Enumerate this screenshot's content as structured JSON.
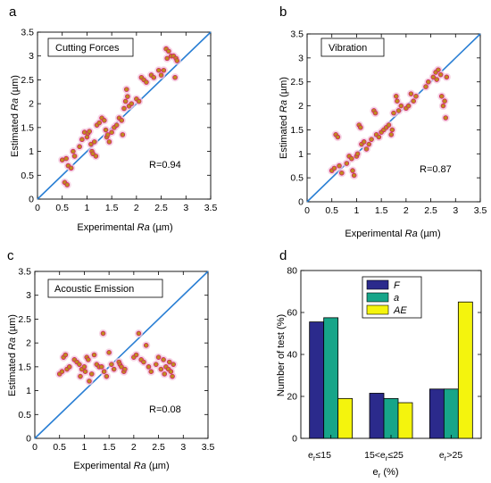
{
  "chart_data": [
    {
      "type": "scatter",
      "panel_letter": "a",
      "box_label": "Cutting Forces",
      "r_label": "R=0.94",
      "xlabel_prefix": "Experimental ",
      "xlabel_var": "Ra",
      "xlabel_unit": " (µm)",
      "ylabel_prefix": "Estimated ",
      "ylabel_var": "Ra",
      "ylabel_unit": "  (µm)",
      "xlim": [
        0,
        3.5
      ],
      "ylim": [
        0,
        3.5
      ],
      "xticks": [
        "0",
        "0.5",
        "1",
        "1.5",
        "2",
        "2.5",
        "3",
        "3.5"
      ],
      "yticks": [
        "0",
        "0.5",
        "1",
        "1.5",
        "2",
        "2.5",
        "3",
        "3.5"
      ],
      "reference_line": [
        [
          0,
          0
        ],
        [
          3.5,
          3.5
        ]
      ],
      "line_color": "#2a7fd4",
      "point_color": "#c08a1e",
      "point_edge": "#d0206a",
      "points": [
        [
          0.5,
          0.82
        ],
        [
          0.55,
          0.35
        ],
        [
          0.6,
          0.3
        ],
        [
          0.58,
          0.85
        ],
        [
          0.62,
          0.7
        ],
        [
          0.68,
          0.65
        ],
        [
          0.75,
          0.9
        ],
        [
          0.72,
          1.0
        ],
        [
          0.85,
          1.1
        ],
        [
          0.9,
          1.25
        ],
        [
          0.95,
          1.4
        ],
        [
          1.0,
          1.3
        ],
        [
          1.02,
          1.38
        ],
        [
          1.05,
          1.42
        ],
        [
          1.08,
          1.15
        ],
        [
          1.1,
          1.0
        ],
        [
          1.12,
          0.95
        ],
        [
          1.15,
          1.2
        ],
        [
          1.18,
          0.9
        ],
        [
          1.2,
          1.55
        ],
        [
          1.25,
          1.6
        ],
        [
          1.3,
          1.7
        ],
        [
          1.35,
          1.65
        ],
        [
          1.38,
          1.45
        ],
        [
          1.4,
          1.3
        ],
        [
          1.42,
          1.35
        ],
        [
          1.45,
          1.2
        ],
        [
          1.5,
          1.4
        ],
        [
          1.55,
          1.5
        ],
        [
          1.6,
          1.55
        ],
        [
          1.65,
          1.7
        ],
        [
          1.7,
          1.65
        ],
        [
          1.72,
          1.35
        ],
        [
          1.75,
          1.9
        ],
        [
          1.78,
          2.05
        ],
        [
          1.8,
          2.3
        ],
        [
          1.82,
          2.15
        ],
        [
          1.85,
          1.95
        ],
        [
          1.9,
          2.0
        ],
        [
          2.0,
          2.1
        ],
        [
          2.05,
          2.05
        ],
        [
          2.1,
          2.55
        ],
        [
          2.15,
          2.5
        ],
        [
          2.2,
          2.45
        ],
        [
          2.3,
          2.6
        ],
        [
          2.35,
          2.55
        ],
        [
          2.45,
          2.7
        ],
        [
          2.5,
          2.6
        ],
        [
          2.55,
          2.7
        ],
        [
          2.6,
          3.15
        ],
        [
          2.62,
          2.95
        ],
        [
          2.65,
          3.1
        ],
        [
          2.7,
          3.0
        ],
        [
          2.75,
          3.0
        ],
        [
          2.78,
          2.55
        ],
        [
          2.8,
          2.95
        ],
        [
          2.82,
          2.9
        ]
      ]
    },
    {
      "type": "scatter",
      "panel_letter": "b",
      "box_label": "Vibration",
      "r_label": "R=0.87",
      "xlabel_prefix": "Experimental ",
      "xlabel_var": "Ra",
      "xlabel_unit": " (µm)",
      "ylabel_prefix": "Estimated ",
      "ylabel_var": "Ra",
      "ylabel_unit": "  (µm)",
      "xlim": [
        0,
        3.5
      ],
      "ylim": [
        0,
        3.5
      ],
      "xticks": [
        "0",
        "0.5",
        "1",
        "1.5",
        "2",
        "2.5",
        "3",
        "3.5"
      ],
      "yticks": [
        "0",
        "0.5",
        "1",
        "1.5",
        "2",
        "2.5",
        "3",
        "3.5"
      ],
      "reference_line": [
        [
          0,
          0
        ],
        [
          3.5,
          3.5
        ]
      ],
      "line_color": "#2a7fd4",
      "point_color": "#c08a1e",
      "point_edge": "#d0206a",
      "points": [
        [
          0.5,
          0.65
        ],
        [
          0.55,
          0.7
        ],
        [
          0.58,
          1.4
        ],
        [
          0.62,
          1.35
        ],
        [
          0.65,
          0.75
        ],
        [
          0.7,
          0.6
        ],
        [
          0.8,
          0.8
        ],
        [
          0.85,
          0.95
        ],
        [
          0.9,
          0.9
        ],
        [
          0.92,
          0.65
        ],
        [
          0.95,
          0.55
        ],
        [
          1.0,
          0.95
        ],
        [
          1.02,
          1.0
        ],
        [
          1.05,
          1.6
        ],
        [
          1.08,
          1.55
        ],
        [
          1.1,
          1.2
        ],
        [
          1.15,
          1.25
        ],
        [
          1.2,
          1.1
        ],
        [
          1.25,
          1.2
        ],
        [
          1.3,
          1.3
        ],
        [
          1.35,
          1.9
        ],
        [
          1.38,
          1.85
        ],
        [
          1.4,
          1.4
        ],
        [
          1.45,
          1.35
        ],
        [
          1.5,
          1.45
        ],
        [
          1.55,
          1.5
        ],
        [
          1.6,
          1.55
        ],
        [
          1.65,
          1.6
        ],
        [
          1.7,
          1.4
        ],
        [
          1.72,
          1.5
        ],
        [
          1.75,
          1.85
        ],
        [
          1.8,
          2.2
        ],
        [
          1.82,
          2.1
        ],
        [
          1.85,
          1.9
        ],
        [
          1.9,
          2.0
        ],
        [
          2.0,
          1.95
        ],
        [
          2.05,
          2.0
        ],
        [
          2.1,
          2.25
        ],
        [
          2.15,
          2.1
        ],
        [
          2.2,
          2.2
        ],
        [
          2.4,
          2.4
        ],
        [
          2.45,
          2.5
        ],
        [
          2.55,
          2.6
        ],
        [
          2.6,
          2.7
        ],
        [
          2.62,
          2.55
        ],
        [
          2.65,
          2.75
        ],
        [
          2.7,
          2.65
        ],
        [
          2.72,
          2.2
        ],
        [
          2.75,
          2.0
        ],
        [
          2.78,
          2.1
        ],
        [
          2.8,
          1.75
        ],
        [
          2.82,
          2.6
        ]
      ]
    },
    {
      "type": "scatter",
      "panel_letter": "c",
      "box_label": "Acoustic Emission",
      "r_label": "R=0.08",
      "xlabel_prefix": "Experimental ",
      "xlabel_var": "Ra",
      "xlabel_unit": " (µm)",
      "ylabel_prefix": "Estimated ",
      "ylabel_var": "Ra",
      "ylabel_unit": "  (µm)",
      "xlim": [
        0,
        3.5
      ],
      "ylim": [
        0,
        3.5
      ],
      "xticks": [
        "0",
        "0.5",
        "1",
        "1.5",
        "2",
        "2.5",
        "3",
        "3.5"
      ],
      "yticks": [
        "0",
        "0.5",
        "1",
        "1.5",
        "2",
        "2.5",
        "3",
        "3.5"
      ],
      "reference_line": [
        [
          0,
          0
        ],
        [
          3.5,
          3.5
        ]
      ],
      "line_color": "#2a7fd4",
      "point_color": "#c08a1e",
      "point_edge": "#d0206a",
      "points": [
        [
          0.5,
          1.35
        ],
        [
          0.55,
          1.4
        ],
        [
          0.58,
          1.7
        ],
        [
          0.62,
          1.75
        ],
        [
          0.65,
          1.45
        ],
        [
          0.7,
          1.5
        ],
        [
          0.8,
          1.65
        ],
        [
          0.85,
          1.6
        ],
        [
          0.9,
          1.55
        ],
        [
          0.92,
          1.3
        ],
        [
          0.95,
          1.45
        ],
        [
          1.0,
          1.5
        ],
        [
          1.02,
          1.4
        ],
        [
          1.05,
          1.7
        ],
        [
          1.08,
          1.65
        ],
        [
          1.1,
          1.2
        ],
        [
          1.15,
          1.35
        ],
        [
          1.2,
          1.75
        ],
        [
          1.25,
          1.55
        ],
        [
          1.3,
          1.5
        ],
        [
          1.35,
          1.5
        ],
        [
          1.38,
          2.2
        ],
        [
          1.4,
          1.4
        ],
        [
          1.45,
          1.3
        ],
        [
          1.5,
          1.8
        ],
        [
          1.55,
          1.55
        ],
        [
          1.6,
          1.45
        ],
        [
          1.7,
          1.6
        ],
        [
          1.72,
          1.55
        ],
        [
          1.75,
          1.5
        ],
        [
          1.8,
          1.4
        ],
        [
          1.82,
          1.45
        ],
        [
          2.0,
          1.7
        ],
        [
          2.05,
          1.75
        ],
        [
          2.1,
          2.2
        ],
        [
          2.15,
          1.65
        ],
        [
          2.2,
          1.6
        ],
        [
          2.25,
          1.95
        ],
        [
          2.3,
          1.5
        ],
        [
          2.35,
          1.4
        ],
        [
          2.45,
          1.55
        ],
        [
          2.5,
          1.7
        ],
        [
          2.55,
          1.45
        ],
        [
          2.6,
          1.65
        ],
        [
          2.62,
          1.35
        ],
        [
          2.65,
          1.5
        ],
        [
          2.7,
          1.45
        ],
        [
          2.72,
          1.6
        ],
        [
          2.75,
          1.4
        ],
        [
          2.78,
          1.3
        ],
        [
          2.8,
          1.55
        ]
      ]
    },
    {
      "type": "bar",
      "panel_letter": "d",
      "categories": [
        {
          "sub": "r",
          "text": "≤15"
        },
        {
          "sub": "",
          "text": "15<e",
          "sub2": "r",
          "text2": "≤25"
        },
        {
          "sub": "r",
          "text": ">25"
        }
      ],
      "xlabel_main": "e",
      "xlabel_sub": "r",
      "xlabel_unit": " (%)",
      "ylabel": "Number of test (%)",
      "ylim": [
        0,
        80
      ],
      "yticks": [
        "0",
        "20",
        "40",
        "60",
        "80"
      ],
      "legend_position": "top-center",
      "series": [
        {
          "name": "F",
          "color": "#2b2a8c",
          "values": [
            55.5,
            21.5,
            23.5
          ]
        },
        {
          "name": "a",
          "color": "#17a589",
          "values": [
            57.5,
            19,
            23.5
          ]
        },
        {
          "name": "AE",
          "color": "#f4f40d",
          "values": [
            19,
            17,
            65
          ]
        }
      ]
    }
  ]
}
